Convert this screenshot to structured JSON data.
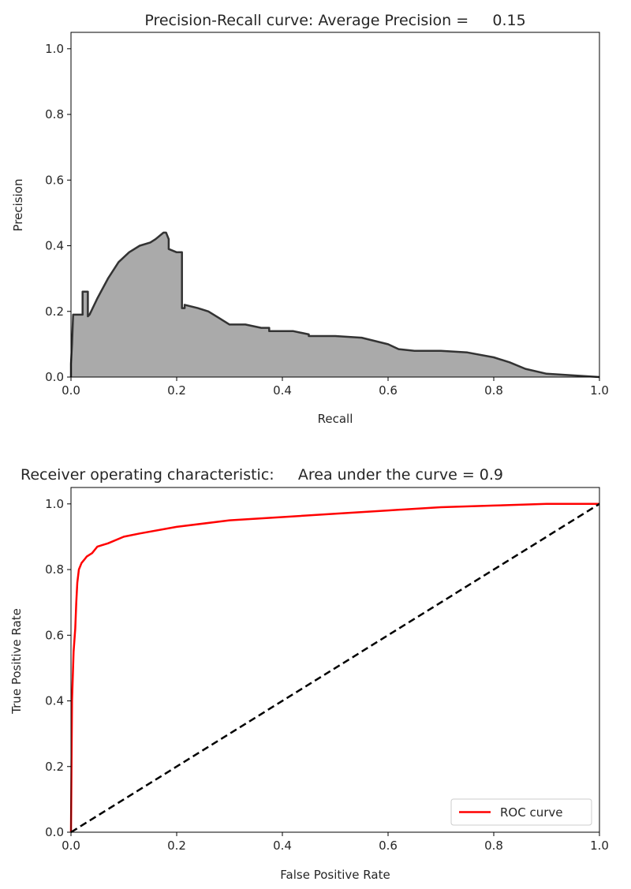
{
  "chart_data": [
    {
      "type": "area",
      "title": "Precision-Recall curve: Average Precision =     0.15",
      "xlabel": "Recall",
      "ylabel": "Precision",
      "xlim": [
        0.0,
        1.0
      ],
      "ylim": [
        0.0,
        1.05
      ],
      "xticks": [
        "0.0",
        "0.2",
        "0.4",
        "0.6",
        "0.8",
        "1.0"
      ],
      "yticks": [
        "0.0",
        "0.2",
        "0.4",
        "0.6",
        "0.8",
        "1.0"
      ],
      "grid": false,
      "colors": {
        "fill": "#aaaaaa",
        "line": "#333333"
      },
      "series": [
        {
          "x": [
            0.0,
            0.0,
            0.002,
            0.004,
            0.005,
            0.015,
            0.022,
            0.022,
            0.032,
            0.032,
            0.035,
            0.05,
            0.07,
            0.09,
            0.11,
            0.13,
            0.15,
            0.16,
            0.175,
            0.18,
            0.185,
            0.185,
            0.2,
            0.21,
            0.21,
            0.215,
            0.215,
            0.24,
            0.26,
            0.28,
            0.3,
            0.33,
            0.36,
            0.375,
            0.375,
            0.42,
            0.45,
            0.45,
            0.5,
            0.55,
            0.6,
            0.62,
            0.65,
            0.7,
            0.75,
            0.8,
            0.83,
            0.86,
            0.9,
            0.95,
            1.0
          ],
          "y": [
            0.0,
            0.04,
            0.1,
            0.19,
            0.19,
            0.19,
            0.19,
            0.26,
            0.26,
            0.185,
            0.19,
            0.24,
            0.3,
            0.35,
            0.38,
            0.4,
            0.41,
            0.42,
            0.44,
            0.44,
            0.42,
            0.39,
            0.38,
            0.38,
            0.21,
            0.21,
            0.22,
            0.21,
            0.2,
            0.18,
            0.16,
            0.16,
            0.15,
            0.15,
            0.14,
            0.14,
            0.13,
            0.125,
            0.125,
            0.12,
            0.1,
            0.085,
            0.08,
            0.08,
            0.075,
            0.06,
            0.045,
            0.025,
            0.01,
            0.005,
            0.0
          ]
        }
      ]
    },
    {
      "type": "line",
      "title": "Receiver operating characteristic:     Area under the curve = 0.9",
      "xlabel": "False Positive Rate",
      "ylabel": "True Positive Rate",
      "xlim": [
        0.0,
        1.0
      ],
      "ylim": [
        0.0,
        1.05
      ],
      "xticks": [
        "0.0",
        "0.2",
        "0.4",
        "0.6",
        "0.8",
        "1.0"
      ],
      "yticks": [
        "0.0",
        "0.2",
        "0.4",
        "0.6",
        "0.8",
        "1.0"
      ],
      "grid": false,
      "legend": {
        "position": "lower-right",
        "entries": [
          "ROC curve"
        ]
      },
      "series": [
        {
          "name": "ROC curve",
          "color": "#ff0000",
          "style": "solid",
          "x": [
            0.0,
            0.002,
            0.005,
            0.008,
            0.01,
            0.012,
            0.015,
            0.02,
            0.025,
            0.03,
            0.04,
            0.05,
            0.07,
            0.1,
            0.13,
            0.2,
            0.3,
            0.4,
            0.5,
            0.6,
            0.7,
            0.8,
            0.9,
            1.0
          ],
          "y": [
            0.0,
            0.4,
            0.55,
            0.62,
            0.7,
            0.76,
            0.8,
            0.82,
            0.83,
            0.84,
            0.85,
            0.87,
            0.88,
            0.9,
            0.91,
            0.93,
            0.95,
            0.96,
            0.97,
            0.98,
            0.99,
            0.995,
            1.0,
            1.0
          ]
        },
        {
          "color": "#000000",
          "style": "dashed",
          "x": [
            0.0,
            1.0
          ],
          "y": [
            0.0,
            1.0
          ]
        }
      ]
    }
  ]
}
